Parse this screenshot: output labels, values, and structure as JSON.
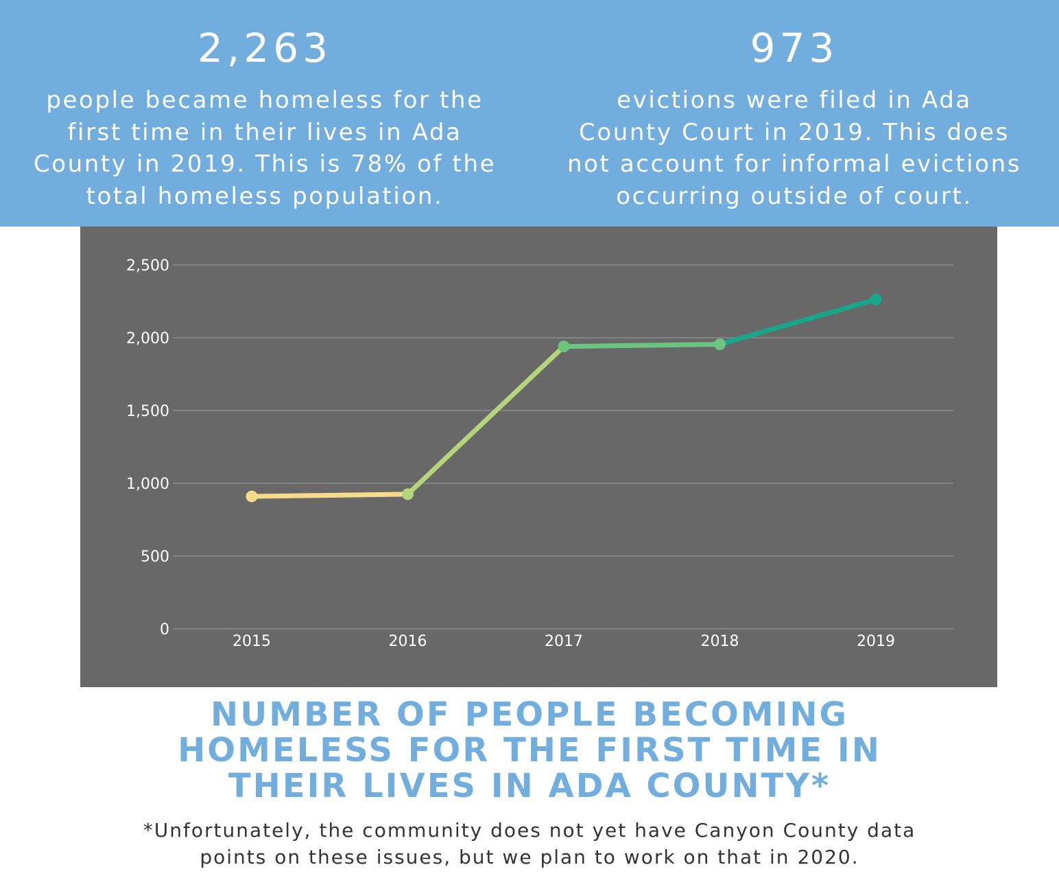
{
  "stats": [
    {
      "number": "2,263",
      "lines": [
        "people became homeless for the",
        "first time in their lives in Ada",
        "County in 2019. This is 78% of the",
        "total homeless population."
      ]
    },
    {
      "number": "973",
      "lines": [
        "evictions were filed in Ada",
        "County Court in 2019. This does",
        "not account for informal evictions",
        "occurring outside of court."
      ]
    }
  ],
  "title_lines": [
    "NUMBER OF PEOPLE BECOMING",
    "HOMELESS FOR THE FIRST TIME IN",
    "THEIR LIVES IN ADA COUNTY*"
  ],
  "footnote_lines": [
    "*Unfortunately, the community does not yet have Canyon County data",
    "points on these issues, but we plan to work on that in 2020."
  ],
  "colors": {
    "banner": "#72aedd",
    "panel": "#686868",
    "grid": "#8a8a8a",
    "tick_text": "#ffffff",
    "segments": [
      "#f6dc8a",
      "#b5d57a",
      "#6cc57f",
      "#17a88a"
    ]
  },
  "chart_data": {
    "type": "line",
    "x": [
      "2015",
      "2016",
      "2017",
      "2018",
      "2019"
    ],
    "series": [
      {
        "values": [
          910,
          925,
          1940,
          1955,
          2263
        ]
      }
    ],
    "ylim": [
      0,
      2500
    ],
    "yticks": [
      "0",
      "500",
      "1,000",
      "1,500",
      "2,000",
      "2,500"
    ],
    "ytick_values": [
      0,
      500,
      1000,
      1500,
      2000,
      2500
    ],
    "grid": true,
    "xlabel": "",
    "ylabel": ""
  }
}
